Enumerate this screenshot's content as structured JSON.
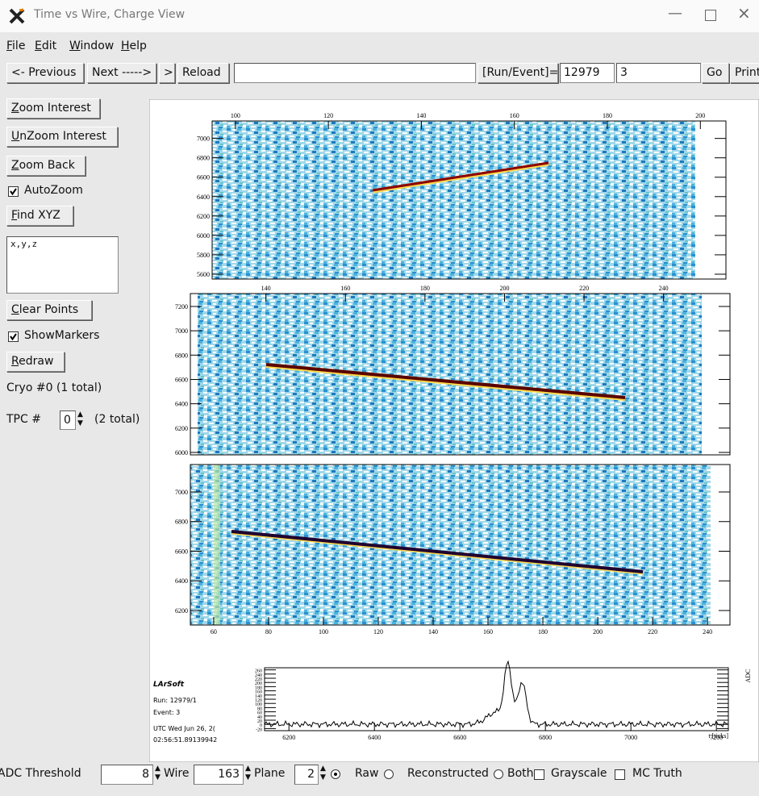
{
  "window": {
    "title": "Time vs Wire, Charge View"
  },
  "menu": [
    "File",
    "Edit",
    "Window",
    "Help"
  ],
  "toolbar": {
    "previous": "<- Previous",
    "next": "Next ----->",
    "step": ">",
    "reload": "Reload",
    "run_event_label": "[Run/Event]=",
    "run": "12979",
    "event": "3",
    "go": "Go",
    "print": "Print"
  },
  "sidebar": {
    "zoom_interest": "Zoom Interest",
    "unzoom_interest": "UnZoom Interest",
    "zoom_back": "Zoom Back",
    "autozoom": "AutoZoom",
    "find_xyz": "Find XYZ",
    "xyz_field": "x,y,z",
    "clear_points": "Clear Points",
    "show_markers": "ShowMarkers",
    "redraw": "Redraw",
    "cryo": "Cryo #0 (1 total)",
    "tpc_label": "TPC  #",
    "tpc": "0",
    "tpc_total": "(2 total)"
  },
  "plots": [
    {
      "xlim": [
        95,
        205.5
      ],
      "xticks": [
        100,
        120,
        140,
        160,
        180,
        200
      ],
      "ylim": [
        5550,
        7180
      ],
      "yticks": [
        5600,
        5800,
        6000,
        6200,
        6400,
        6600,
        6800,
        7000
      ]
    },
    {
      "xlim": [
        121,
        256.7
      ],
      "xticks": [
        140,
        160,
        180,
        200,
        220,
        240
      ],
      "ylim": [
        5980,
        7306
      ],
      "yticks": [
        6000,
        6200,
        6400,
        6600,
        6800,
        7000,
        7200
      ]
    },
    {
      "xlim": [
        51.5,
        248.2
      ],
      "xticks": [
        60,
        80,
        100,
        120,
        140,
        160,
        180,
        200,
        220,
        240
      ],
      "ylim": [
        6102,
        7185
      ],
      "yticks": [
        6200,
        6400,
        6600,
        6800,
        7000
      ]
    }
  ],
  "waveform": {
    "xlim": [
      6143,
      7228
    ],
    "xticks": [
      6200,
      6400,
      6600,
      6800,
      7000,
      7200
    ],
    "ylim": [
      -30,
      270
    ],
    "yticks": [
      -20,
      0,
      20,
      40,
      60,
      80,
      100,
      120,
      140,
      160,
      180,
      200,
      220,
      240,
      260
    ],
    "x_label": "t [ticks]",
    "y_label": "ADC"
  },
  "info": {
    "name": "LArSoft",
    "run": "Run:  12979/1",
    "event": "Event: 3",
    "date": "UTC Wed Jun 26, 2(",
    "time": "02:56:51.89139942"
  },
  "controls": {
    "adc_threshold_label": "ADC Threshold",
    "adc_threshold": "8",
    "wire_label": "Wire",
    "wire": "163",
    "plane_label": "Plane",
    "plane": "2",
    "raw": "Raw",
    "reconstructed": "Reconstructed",
    "both": "Both",
    "grayscale": "Grayscale",
    "mc_truth": "MC Truth"
  }
}
